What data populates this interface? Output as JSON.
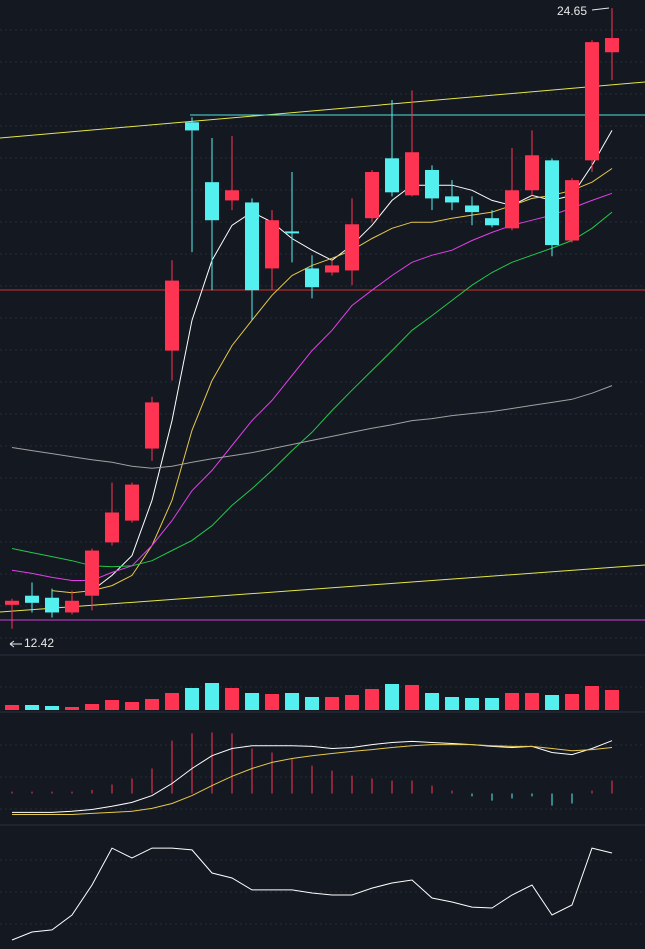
{
  "chart_data": [
    {
      "type": "candlestick",
      "ylim": [
        12.0,
        24.81
      ],
      "open": [
        12.89,
        13.07,
        13.03,
        12.74,
        13.07,
        14.12,
        14.55,
        15.97,
        17.9,
        22.4,
        21.22,
        20.86,
        20.82,
        19.52,
        20.25,
        19.52,
        19.44,
        19.48,
        20.51,
        21.69,
        20.96,
        21.46,
        20.94,
        20.76,
        20.51,
        20.31,
        21.06,
        21.65,
        20.07,
        21.65,
        23.78
      ],
      "high": [
        13.01,
        13.33,
        13.21,
        13.17,
        14.0,
        15.3,
        15.3,
        16.99,
        19.68,
        22.5,
        22.09,
        22.13,
        20.9,
        20.67,
        21.42,
        19.78,
        19.68,
        20.9,
        21.46,
        22.84,
        23.03,
        21.55,
        21.26,
        20.94,
        20.67,
        21.89,
        22.24,
        21.69,
        21.3,
        24.02,
        24.65
      ],
      "low": [
        12.42,
        12.74,
        12.64,
        12.7,
        12.78,
        14.06,
        14.51,
        15.73,
        17.31,
        19.84,
        19.09,
        20.67,
        18.5,
        19.09,
        19.64,
        18.93,
        19.38,
        19.19,
        20.43,
        20.94,
        20.94,
        20.67,
        20.67,
        20.37,
        20.33,
        20.27,
        20.96,
        19.76,
        20.03,
        21.42,
        23.23
      ],
      "close": [
        12.97,
        12.93,
        12.74,
        12.97,
        13.96,
        14.71,
        15.26,
        16.88,
        19.28,
        22.24,
        20.47,
        21.06,
        19.09,
        20.47,
        20.21,
        19.15,
        19.58,
        20.39,
        21.42,
        21.02,
        21.81,
        20.9,
        20.82,
        20.63,
        20.37,
        21.06,
        21.75,
        19.98,
        21.26,
        23.98,
        24.06
      ],
      "up_color": "#ff3352",
      "down_color": "#54f0f0",
      "lines": [
        {
          "color": "#ffffff",
          "values": [
            null,
            null,
            null,
            null,
            13.17,
            13.47,
            13.86,
            14.95,
            16.52,
            18.5,
            19.68,
            20.37,
            20.63,
            20.43,
            20.11,
            19.88,
            19.68,
            19.98,
            20.37,
            20.86,
            21.16,
            21.16,
            21.16,
            21.06,
            20.86,
            20.76,
            20.96,
            20.86,
            20.96,
            21.55,
            22.24
          ]
        },
        {
          "color": "#e6c84a",
          "values": [
            null,
            null,
            13.17,
            13.13,
            13.17,
            13.27,
            13.47,
            14.06,
            14.95,
            16.33,
            17.31,
            18.0,
            18.5,
            18.99,
            19.38,
            19.58,
            19.72,
            19.88,
            20.11,
            20.31,
            20.43,
            20.43,
            20.51,
            20.57,
            20.63,
            20.76,
            20.9,
            20.96,
            21.06,
            21.22,
            21.49
          ]
        },
        {
          "color": "#e040e8",
          "values": [
            13.57,
            13.51,
            13.43,
            13.37,
            13.37,
            13.53,
            13.66,
            14.06,
            14.55,
            15.14,
            15.54,
            16.03,
            16.52,
            16.92,
            17.41,
            17.9,
            18.3,
            18.79,
            19.09,
            19.38,
            19.64,
            19.78,
            19.88,
            20.07,
            20.23,
            20.37,
            20.47,
            20.57,
            20.71,
            20.86,
            21.0
          ]
        },
        {
          "color": "#22c84a",
          "values": [
            14.0,
            13.92,
            13.84,
            13.76,
            13.66,
            13.64,
            13.66,
            13.76,
            13.96,
            14.16,
            14.45,
            14.85,
            15.18,
            15.54,
            15.93,
            16.29,
            16.72,
            17.12,
            17.51,
            17.9,
            18.3,
            18.59,
            18.89,
            19.19,
            19.44,
            19.64,
            19.78,
            19.92,
            20.07,
            20.31,
            20.63
          ]
        },
        {
          "color": "#a0a0a0",
          "values": [
            15.99,
            15.93,
            15.87,
            15.81,
            15.75,
            15.7,
            15.62,
            15.58,
            15.62,
            15.7,
            15.77,
            15.83,
            15.89,
            15.97,
            16.05,
            16.13,
            16.21,
            16.29,
            16.37,
            16.44,
            16.52,
            16.56,
            16.62,
            16.66,
            16.7,
            16.76,
            16.82,
            16.88,
            16.94,
            17.06,
            17.21
          ]
        }
      ],
      "annotations": [
        {
          "text": "24.65"
        },
        {
          "text": "12.42"
        }
      ]
    },
    {
      "type": "bar",
      "ylim": [
        0,
        53
      ],
      "values": [
        5,
        5,
        4,
        3,
        6,
        10,
        8,
        11,
        17,
        22,
        27,
        22,
        17,
        16,
        17,
        13,
        13,
        15,
        21,
        26,
        25,
        17,
        13,
        12,
        12,
        17,
        17,
        15,
        16,
        24,
        20
      ]
    },
    {
      "type": "macd",
      "ylim": [
        -0.8,
        2.2
      ],
      "histogram": [
        0.05,
        0.05,
        0.05,
        0.05,
        0.1,
        0.25,
        0.42,
        0.7,
        1.48,
        1.68,
        1.71,
        1.68,
        1.26,
        1.15,
        0.98,
        0.78,
        0.64,
        0.5,
        0.42,
        0.36,
        0.36,
        0.22,
        0.08,
        -0.08,
        -0.2,
        -0.14,
        -0.08,
        -0.34,
        -0.28,
        0.08,
        0.36
      ],
      "dif": [
        -0.53,
        -0.53,
        -0.53,
        -0.5,
        -0.45,
        -0.36,
        -0.25,
        -0.06,
        0.28,
        0.7,
        1.06,
        1.26,
        1.34,
        1.34,
        1.34,
        1.32,
        1.26,
        1.29,
        1.37,
        1.43,
        1.46,
        1.43,
        1.4,
        1.37,
        1.32,
        1.29,
        1.32,
        1.15,
        1.09,
        1.26,
        1.48
      ],
      "dea": [
        -0.59,
        -0.59,
        -0.59,
        -0.59,
        -0.56,
        -0.53,
        -0.5,
        -0.42,
        -0.28,
        -0.06,
        0.22,
        0.48,
        0.7,
        0.87,
        0.98,
        1.06,
        1.12,
        1.18,
        1.23,
        1.29,
        1.34,
        1.37,
        1.37,
        1.37,
        1.34,
        1.32,
        1.32,
        1.26,
        1.2,
        1.23,
        1.29
      ],
      "dif_color": "#ffffff",
      "dea_color": "#e6c84a"
    },
    {
      "type": "line",
      "ylim": [
        0,
        100
      ],
      "color": "#ffffff",
      "values": [
        6.8,
        13.6,
        15.3,
        28.0,
        53.4,
        84.7,
        76.3,
        84.7,
        84.7,
        83.1,
        63.6,
        59.3,
        49.2,
        49.2,
        49.2,
        46.6,
        44.9,
        44.9,
        50.8,
        55.1,
        57.6,
        42.4,
        39.0,
        34.7,
        33.9,
        44.9,
        53.4,
        28.0,
        36.4,
        84.7,
        80.5
      ]
    }
  ]
}
